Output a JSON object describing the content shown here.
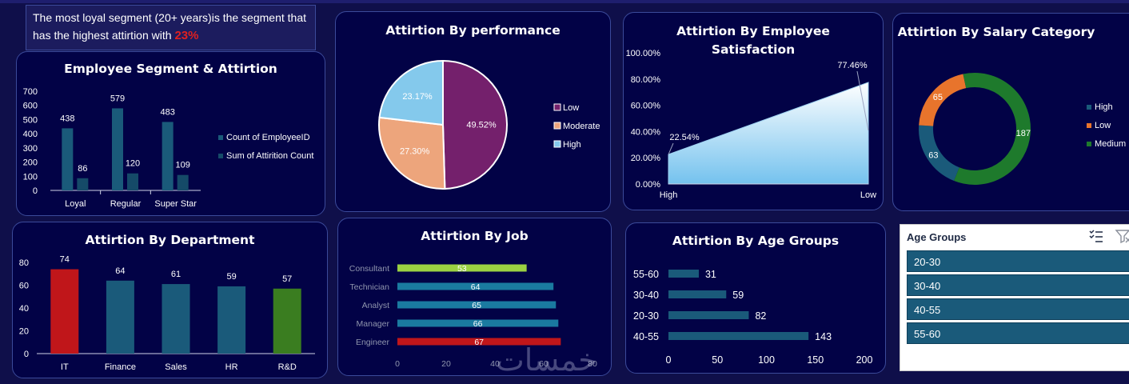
{
  "insight": {
    "text": "The most loyal segment (20+ years)is the segment that has the highest attirtion with ",
    "highlight": "23%"
  },
  "colors": {
    "background": "#0f0f4a",
    "card": "#020246",
    "teal": "#1a5a7a",
    "red": "#c0161a",
    "green": "#3a7d20",
    "lime": "#9bd142",
    "orange": "#e8742c",
    "purple": "#74206c",
    "peach": "#eda57c",
    "skyblue": "#84c9ec"
  },
  "chart_data": [
    {
      "id": "segment",
      "type": "bar",
      "title": "Employee Segment & Attirtion",
      "categories": [
        "Loyal",
        "Regular",
        "Super Star"
      ],
      "series": [
        {
          "name": "Count of EmployeeID",
          "values": [
            438,
            579,
            483
          ],
          "color": "#1a5a7a"
        },
        {
          "name": "Sum of Attirition Count",
          "values": [
            86,
            120,
            109
          ],
          "color": "#154a68"
        }
      ],
      "ylim": [
        0,
        700
      ],
      "yticks": [
        0,
        100,
        200,
        300,
        400,
        500,
        600,
        700
      ],
      "legend": "right"
    },
    {
      "id": "performance",
      "type": "pie",
      "title": "Attirtion By performance",
      "slices": [
        {
          "label": "Low",
          "value": 49.52,
          "text": "49.52%",
          "color": "#74206c"
        },
        {
          "label": "Moderate",
          "value": 27.3,
          "text": "27.30%",
          "color": "#eda57c"
        },
        {
          "label": "High",
          "value": 23.17,
          "text": "23.17%",
          "color": "#84c9ec"
        }
      ],
      "legend": "right"
    },
    {
      "id": "satisfaction",
      "type": "area",
      "title": "Attirtion By Employee Satisfaction",
      "categories": [
        "High",
        "Low"
      ],
      "values": [
        22.54,
        77.46
      ],
      "labels": [
        "22.54%",
        "77.46%"
      ],
      "ylim": [
        0,
        100
      ],
      "yticks": [
        "0.00%",
        "20.00%",
        "40.00%",
        "60.00%",
        "80.00%",
        "100.00%"
      ]
    },
    {
      "id": "salary",
      "type": "pie",
      "title": "Attirtion By Salary Category",
      "slices": [
        {
          "label": "High",
          "value": 63,
          "text": "63",
          "color": "#1a5a7a"
        },
        {
          "label": "Low",
          "value": 65,
          "text": "65",
          "color": "#e8742c"
        },
        {
          "label": "Medium",
          "value": 187,
          "text": "187",
          "color": "#1e7a2c"
        }
      ],
      "legend": "right"
    },
    {
      "id": "department",
      "type": "bar",
      "title": "Attirtion By Department",
      "categories": [
        "IT",
        "Finance",
        "Sales",
        "HR",
        "R&D"
      ],
      "values": [
        74,
        64,
        61,
        59,
        57
      ],
      "colors": [
        "#c0161a",
        "#1a5a7a",
        "#1a5a7a",
        "#1a5a7a",
        "#3a7d20"
      ],
      "ylim": [
        0,
        80
      ],
      "yticks": [
        0,
        20,
        40,
        60,
        80
      ]
    },
    {
      "id": "job",
      "type": "bar",
      "title": "Attirtion By Job",
      "categories": [
        "Consultant",
        "Technician",
        "Analyst",
        "Manager",
        "Engineer"
      ],
      "values": [
        53,
        64,
        65,
        66,
        67
      ],
      "colors": [
        "#9bd142",
        "#1a7aa0",
        "#1a7aa0",
        "#1a7aa0",
        "#c0161a"
      ],
      "xlim": [
        0,
        80
      ],
      "xticks": [
        0,
        20,
        40,
        60,
        80
      ]
    },
    {
      "id": "age",
      "type": "bar",
      "title": "Attirtion By Age Groups",
      "categories": [
        "55-60",
        "30-40",
        "20-30",
        "40-55"
      ],
      "values": [
        31,
        59,
        82,
        143
      ],
      "xlim": [
        0,
        200
      ],
      "xticks": [
        0,
        50,
        100,
        150,
        200
      ]
    }
  ],
  "slicer": {
    "title": "Age Groups",
    "items": [
      "20-30",
      "30-40",
      "40-55",
      "55-60"
    ]
  },
  "watermark": "خمسات"
}
